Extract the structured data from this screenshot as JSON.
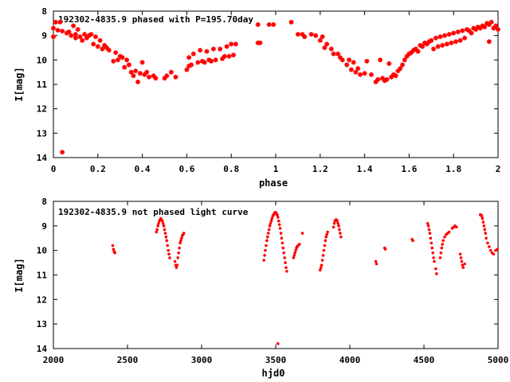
{
  "chart_data": [
    {
      "type": "scatter",
      "title": "192302-4835.9 phased with P=195.70day",
      "xlabel": "phase",
      "ylabel": "I[mag]",
      "xlim": [
        0,
        2
      ],
      "ylim": [
        14,
        8
      ],
      "y_inverted": true,
      "xticks": [
        "0",
        "0.2",
        "0.4",
        "0.6",
        "0.8",
        "1",
        "1.2",
        "1.4",
        "1.6",
        "1.8",
        "2"
      ],
      "yticks": [
        "8",
        "9",
        "10",
        "11",
        "12",
        "13",
        "14"
      ],
      "marker": "asterisk",
      "color": "#ff0000",
      "points": [
        [
          0.0,
          9.05
        ],
        [
          0.0,
          8.7
        ],
        [
          0.01,
          8.45
        ],
        [
          0.02,
          8.78
        ],
        [
          0.03,
          8.45
        ],
        [
          0.04,
          8.82
        ],
        [
          0.04,
          13.78
        ],
        [
          0.06,
          8.9
        ],
        [
          0.07,
          8.85
        ],
        [
          0.08,
          9.0
        ],
        [
          0.09,
          8.6
        ],
        [
          0.1,
          8.95
        ],
        [
          0.1,
          9.1
        ],
        [
          0.11,
          8.75
        ],
        [
          0.12,
          9.05
        ],
        [
          0.13,
          9.2
        ],
        [
          0.14,
          8.95
        ],
        [
          0.15,
          9.1
        ],
        [
          0.16,
          9.0
        ],
        [
          0.17,
          8.95
        ],
        [
          0.18,
          9.35
        ],
        [
          0.19,
          9.05
        ],
        [
          0.2,
          9.45
        ],
        [
          0.21,
          9.2
        ],
        [
          0.22,
          9.55
        ],
        [
          0.23,
          9.4
        ],
        [
          0.24,
          9.5
        ],
        [
          0.25,
          9.6
        ],
        [
          0.27,
          10.05
        ],
        [
          0.28,
          9.7
        ],
        [
          0.29,
          10.0
        ],
        [
          0.3,
          9.85
        ],
        [
          0.31,
          9.9
        ],
        [
          0.32,
          10.3
        ],
        [
          0.33,
          10.0
        ],
        [
          0.34,
          10.2
        ],
        [
          0.35,
          10.5
        ],
        [
          0.36,
          10.65
        ],
        [
          0.37,
          10.45
        ],
        [
          0.38,
          10.9
        ],
        [
          0.39,
          10.55
        ],
        [
          0.4,
          10.1
        ],
        [
          0.41,
          10.6
        ],
        [
          0.42,
          10.5
        ],
        [
          0.43,
          10.7
        ],
        [
          0.45,
          10.65
        ],
        [
          0.46,
          10.75
        ],
        [
          0.5,
          10.75
        ],
        [
          0.51,
          10.65
        ],
        [
          0.53,
          10.5
        ],
        [
          0.55,
          10.7
        ],
        [
          0.6,
          10.4
        ],
        [
          0.61,
          10.25
        ],
        [
          0.61,
          9.9
        ],
        [
          0.62,
          10.2
        ],
        [
          0.63,
          9.75
        ],
        [
          0.65,
          10.1
        ],
        [
          0.66,
          9.6
        ],
        [
          0.67,
          10.05
        ],
        [
          0.68,
          10.1
        ],
        [
          0.69,
          9.65
        ],
        [
          0.7,
          10.0
        ],
        [
          0.71,
          10.05
        ],
        [
          0.72,
          9.55
        ],
        [
          0.73,
          10.0
        ],
        [
          0.75,
          9.55
        ],
        [
          0.76,
          9.95
        ],
        [
          0.77,
          9.85
        ],
        [
          0.78,
          9.45
        ],
        [
          0.79,
          9.85
        ],
        [
          0.8,
          9.35
        ],
        [
          0.81,
          9.8
        ],
        [
          0.82,
          9.35
        ],
        [
          0.92,
          9.3
        ],
        [
          0.93,
          9.3
        ],
        [
          0.92,
          8.55
        ],
        [
          0.97,
          8.55
        ],
        [
          0.99,
          8.55
        ],
        [
          1.07,
          8.45
        ],
        [
          1.1,
          8.95
        ],
        [
          1.12,
          8.95
        ],
        [
          1.13,
          9.05
        ],
        [
          1.16,
          8.95
        ],
        [
          1.18,
          9.0
        ],
        [
          1.2,
          9.2
        ],
        [
          1.21,
          9.05
        ],
        [
          1.22,
          9.5
        ],
        [
          1.23,
          9.35
        ],
        [
          1.25,
          9.55
        ],
        [
          1.26,
          9.75
        ],
        [
          1.28,
          9.75
        ],
        [
          1.29,
          9.9
        ],
        [
          1.3,
          10.0
        ],
        [
          1.32,
          10.2
        ],
        [
          1.33,
          10.0
        ],
        [
          1.34,
          10.4
        ],
        [
          1.35,
          10.1
        ],
        [
          1.36,
          10.5
        ],
        [
          1.37,
          10.35
        ],
        [
          1.38,
          10.6
        ],
        [
          1.4,
          10.55
        ],
        [
          1.41,
          10.05
        ],
        [
          1.43,
          10.6
        ],
        [
          1.45,
          10.9
        ],
        [
          1.46,
          10.8
        ],
        [
          1.47,
          10.0
        ],
        [
          1.48,
          10.75
        ],
        [
          1.49,
          10.85
        ],
        [
          1.5,
          10.8
        ],
        [
          1.51,
          10.15
        ],
        [
          1.52,
          10.7
        ],
        [
          1.53,
          10.6
        ],
        [
          1.54,
          10.65
        ],
        [
          1.55,
          10.45
        ],
        [
          1.56,
          10.35
        ],
        [
          1.57,
          10.2
        ],
        [
          1.58,
          10.0
        ],
        [
          1.59,
          9.85
        ],
        [
          1.6,
          9.75
        ],
        [
          1.61,
          9.7
        ],
        [
          1.62,
          9.6
        ],
        [
          1.63,
          9.55
        ],
        [
          1.64,
          9.65
        ],
        [
          1.65,
          9.4
        ],
        [
          1.66,
          9.45
        ],
        [
          1.67,
          9.3
        ],
        [
          1.68,
          9.35
        ],
        [
          1.69,
          9.25
        ],
        [
          1.7,
          9.2
        ],
        [
          1.71,
          9.55
        ],
        [
          1.72,
          9.1
        ],
        [
          1.73,
          9.45
        ],
        [
          1.74,
          9.05
        ],
        [
          1.75,
          9.4
        ],
        [
          1.76,
          9.0
        ],
        [
          1.77,
          9.35
        ],
        [
          1.78,
          8.95
        ],
        [
          1.79,
          9.3
        ],
        [
          1.8,
          8.9
        ],
        [
          1.81,
          9.25
        ],
        [
          1.82,
          8.85
        ],
        [
          1.83,
          9.2
        ],
        [
          1.84,
          8.8
        ],
        [
          1.85,
          9.1
        ],
        [
          1.86,
          8.75
        ],
        [
          1.87,
          8.8
        ],
        [
          1.88,
          8.9
        ],
        [
          1.89,
          8.7
        ],
        [
          1.9,
          8.75
        ],
        [
          1.91,
          8.65
        ],
        [
          1.92,
          8.7
        ],
        [
          1.93,
          8.6
        ],
        [
          1.94,
          8.65
        ],
        [
          1.95,
          8.5
        ],
        [
          1.96,
          8.55
        ],
        [
          1.96,
          9.25
        ],
        [
          1.97,
          8.45
        ],
        [
          1.98,
          8.7
        ],
        [
          1.99,
          8.6
        ],
        [
          2.0,
          8.75
        ]
      ]
    },
    {
      "type": "scatter",
      "title": "192302-4835.9 not phased light curve",
      "xlabel": "hjd0",
      "ylabel": "I[mag]",
      "xlim": [
        2000,
        5000
      ],
      "ylim": [
        14,
        8
      ],
      "y_inverted": true,
      "xticks": [
        "2000",
        "2500",
        "3000",
        "3500",
        "4000",
        "4500",
        "5000"
      ],
      "yticks": [
        "8",
        "9",
        "10",
        "11",
        "12",
        "13",
        "14"
      ],
      "marker": "dot",
      "color": "#ff0000",
      "points": [
        [
          2400,
          9.8
        ],
        [
          2405,
          9.95
        ],
        [
          2410,
          10.05
        ],
        [
          2415,
          10.1
        ],
        [
          2695,
          9.25
        ],
        [
          2700,
          9.15
        ],
        [
          2705,
          9.0
        ],
        [
          2710,
          8.9
        ],
        [
          2715,
          8.8
        ],
        [
          2720,
          8.75
        ],
        [
          2725,
          8.7
        ],
        [
          2730,
          8.75
        ],
        [
          2735,
          8.8
        ],
        [
          2740,
          8.9
        ],
        [
          2745,
          9.0
        ],
        [
          2750,
          9.15
        ],
        [
          2755,
          9.3
        ],
        [
          2760,
          9.45
        ],
        [
          2765,
          9.6
        ],
        [
          2770,
          9.8
        ],
        [
          2775,
          10.0
        ],
        [
          2780,
          10.15
        ],
        [
          2785,
          10.3
        ],
        [
          2820,
          10.45
        ],
        [
          2825,
          10.6
        ],
        [
          2830,
          10.7
        ],
        [
          2835,
          10.6
        ],
        [
          2840,
          10.3
        ],
        [
          2845,
          10.1
        ],
        [
          2850,
          9.9
        ],
        [
          2855,
          9.7
        ],
        [
          2860,
          9.6
        ],
        [
          2865,
          9.5
        ],
        [
          2870,
          9.4
        ],
        [
          2875,
          9.35
        ],
        [
          2880,
          9.3
        ],
        [
          3420,
          10.4
        ],
        [
          3425,
          10.2
        ],
        [
          3430,
          10.0
        ],
        [
          3435,
          9.8
        ],
        [
          3440,
          9.6
        ],
        [
          3445,
          9.45
        ],
        [
          3450,
          9.3
        ],
        [
          3455,
          9.15
        ],
        [
          3460,
          9.0
        ],
        [
          3465,
          8.9
        ],
        [
          3470,
          8.8
        ],
        [
          3475,
          8.7
        ],
        [
          3480,
          8.6
        ],
        [
          3485,
          8.55
        ],
        [
          3490,
          8.5
        ],
        [
          3495,
          8.45
        ],
        [
          3500,
          8.45
        ],
        [
          3505,
          8.5
        ],
        [
          3510,
          8.55
        ],
        [
          3515,
          8.65
        ],
        [
          3520,
          8.8
        ],
        [
          3525,
          8.95
        ],
        [
          3530,
          9.1
        ],
        [
          3535,
          9.3
        ],
        [
          3540,
          9.5
        ],
        [
          3545,
          9.7
        ],
        [
          3550,
          9.9
        ],
        [
          3555,
          10.1
        ],
        [
          3560,
          10.3
        ],
        [
          3565,
          10.5
        ],
        [
          3570,
          10.7
        ],
        [
          3575,
          10.85
        ],
        [
          3515,
          13.8
        ],
        [
          3620,
          10.3
        ],
        [
          3625,
          10.2
        ],
        [
          3630,
          10.1
        ],
        [
          3635,
          10.0
        ],
        [
          3640,
          9.9
        ],
        [
          3645,
          9.85
        ],
        [
          3650,
          9.8
        ],
        [
          3660,
          9.75
        ],
        [
          3680,
          9.3
        ],
        [
          3800,
          10.8
        ],
        [
          3805,
          10.7
        ],
        [
          3810,
          10.6
        ],
        [
          3815,
          10.4
        ],
        [
          3820,
          10.2
        ],
        [
          3825,
          10.0
        ],
        [
          3830,
          9.8
        ],
        [
          3835,
          9.6
        ],
        [
          3840,
          9.45
        ],
        [
          3845,
          9.35
        ],
        [
          3850,
          9.25
        ],
        [
          3890,
          9.05
        ],
        [
          3895,
          8.9
        ],
        [
          3900,
          8.8
        ],
        [
          3905,
          8.75
        ],
        [
          3910,
          8.75
        ],
        [
          3915,
          8.8
        ],
        [
          3920,
          8.9
        ],
        [
          3925,
          9.0
        ],
        [
          3930,
          9.15
        ],
        [
          3935,
          9.3
        ],
        [
          3940,
          9.45
        ],
        [
          4175,
          10.45
        ],
        [
          4180,
          10.55
        ],
        [
          4235,
          9.9
        ],
        [
          4240,
          9.95
        ],
        [
          4420,
          9.55
        ],
        [
          4425,
          9.6
        ],
        [
          4525,
          8.9
        ],
        [
          4530,
          9.0
        ],
        [
          4535,
          9.15
        ],
        [
          4540,
          9.3
        ],
        [
          4545,
          9.5
        ],
        [
          4550,
          9.7
        ],
        [
          4555,
          9.9
        ],
        [
          4560,
          10.1
        ],
        [
          4565,
          10.3
        ],
        [
          4570,
          10.45
        ],
        [
          4580,
          10.75
        ],
        [
          4585,
          10.95
        ],
        [
          4610,
          10.3
        ],
        [
          4615,
          10.1
        ],
        [
          4620,
          9.9
        ],
        [
          4625,
          9.75
        ],
        [
          4630,
          9.6
        ],
        [
          4640,
          9.45
        ],
        [
          4650,
          9.35
        ],
        [
          4660,
          9.3
        ],
        [
          4670,
          9.25
        ],
        [
          4690,
          9.1
        ],
        [
          4700,
          9.05
        ],
        [
          4710,
          9.0
        ],
        [
          4720,
          9.05
        ],
        [
          4745,
          10.15
        ],
        [
          4750,
          10.3
        ],
        [
          4755,
          10.45
        ],
        [
          4760,
          10.6
        ],
        [
          4765,
          10.7
        ],
        [
          4775,
          10.55
        ],
        [
          4880,
          8.55
        ],
        [
          4885,
          8.55
        ],
        [
          4890,
          8.6
        ],
        [
          4895,
          8.7
        ],
        [
          4900,
          8.85
        ],
        [
          4905,
          9.0
        ],
        [
          4910,
          9.15
        ],
        [
          4915,
          9.3
        ],
        [
          4920,
          9.5
        ],
        [
          4930,
          9.7
        ],
        [
          4940,
          9.85
        ],
        [
          4950,
          10.0
        ],
        [
          4960,
          10.1
        ],
        [
          4970,
          10.15
        ],
        [
          4985,
          10.0
        ],
        [
          4995,
          9.95
        ]
      ]
    }
  ]
}
